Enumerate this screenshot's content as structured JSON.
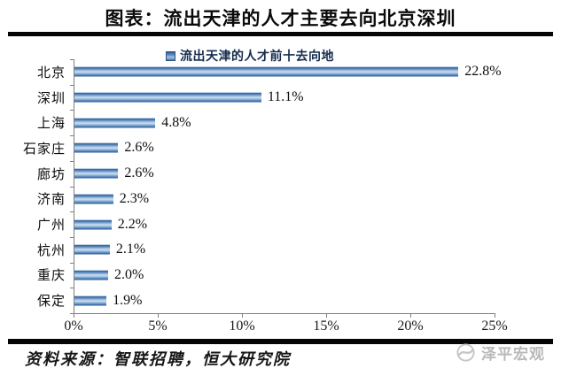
{
  "header": {
    "title": "图表：流出天津的人才主要去向北京深圳"
  },
  "chart_data": {
    "type": "bar",
    "orientation": "horizontal",
    "title": "流出天津的人才前十去向地",
    "categories": [
      "北京",
      "深圳",
      "上海",
      "石家庄",
      "廊坊",
      "济南",
      "广州",
      "杭州",
      "重庆",
      "保定"
    ],
    "values": [
      22.8,
      11.1,
      4.8,
      2.6,
      2.6,
      2.3,
      2.2,
      2.1,
      2.0,
      1.9
    ],
    "value_labels": [
      "22.8%",
      "11.1%",
      "4.8%",
      "2.6%",
      "2.6%",
      "2.3%",
      "2.2%",
      "2.1%",
      "2.0%",
      "1.9%"
    ],
    "x_ticks": [
      "0%",
      "5%",
      "10%",
      "15%",
      "20%",
      "25%"
    ],
    "xlim": [
      0,
      25
    ],
    "bar_color": "#4f81bd",
    "legend_position": "top",
    "grid": false
  },
  "footer": {
    "source": "资料来源：智联招聘，恒大研究院",
    "watermark": "泽平宏观"
  }
}
